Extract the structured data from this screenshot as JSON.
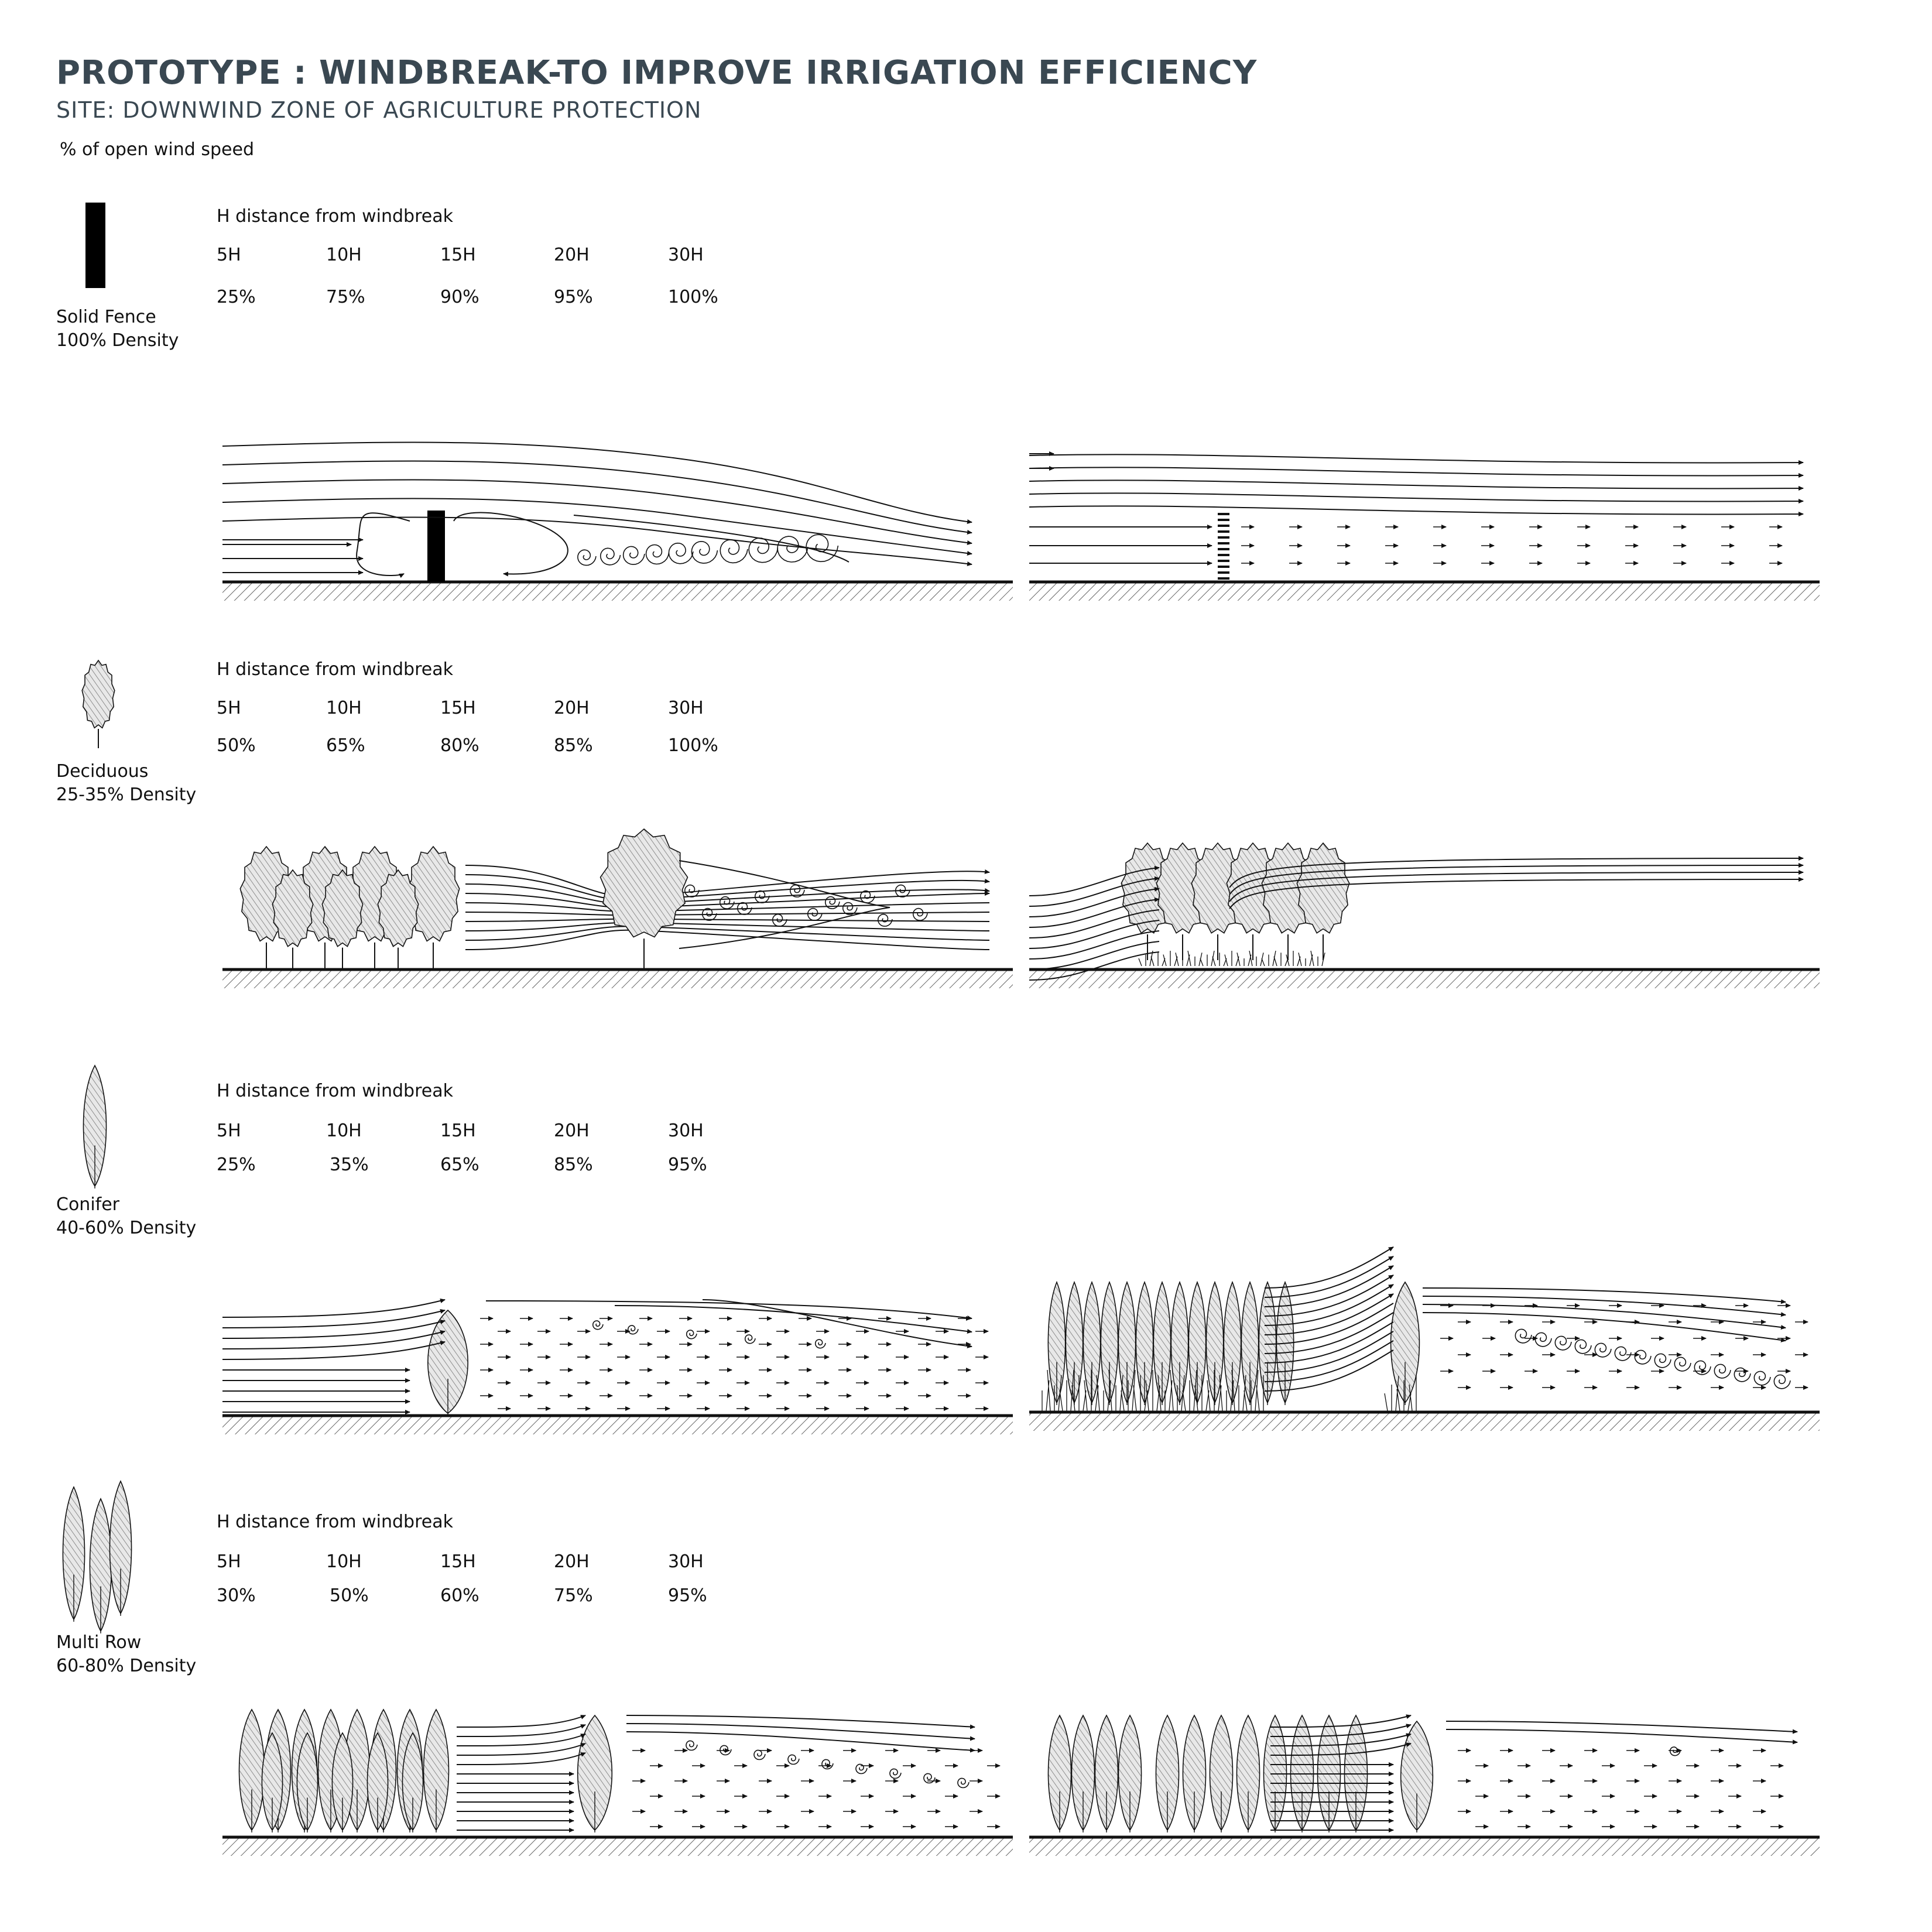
{
  "title": "PROTOTYPE : WINDBREAK-TO IMPROVE IRRIGATION EFFICIENCY",
  "subtitle": "SITE: DOWNWIND ZONE OF AGRICULTURE PROTECTION",
  "caption": "% of open wind speed",
  "rows": [
    {
      "type_name": "Solid Fence",
      "density": "100% Density",
      "h_title": "H distance from windbreak",
      "distances": [
        "5H",
        "10H",
        "15H",
        "20H",
        "30H"
      ],
      "speeds": [
        "25%",
        "75%",
        "90%",
        "95%",
        "100%"
      ]
    },
    {
      "type_name": "Deciduous",
      "density": "25-35% Density",
      "h_title": "H distance from windbreak",
      "distances": [
        "5H",
        "10H",
        "15H",
        "20H",
        "30H"
      ],
      "speeds": [
        "50%",
        "65%",
        "80%",
        "85%",
        "100%"
      ]
    },
    {
      "type_name": "Conifer",
      "density": "40-60% Density",
      "h_title": "H distance from windbreak",
      "distances": [
        "5H",
        "10H",
        "15H",
        "20H",
        "30H"
      ],
      "speeds": [
        "25%",
        "35%",
        "65%",
        "85%",
        "95%"
      ]
    },
    {
      "type_name": "Multi Row",
      "density": "60-80% Density",
      "h_title": "H distance from windbreak",
      "distances": [
        "5H",
        "10H",
        "15H",
        "20H",
        "30H"
      ],
      "speeds": [
        "30%",
        "50%",
        "60%",
        "75%",
        "95%"
      ]
    }
  ]
}
